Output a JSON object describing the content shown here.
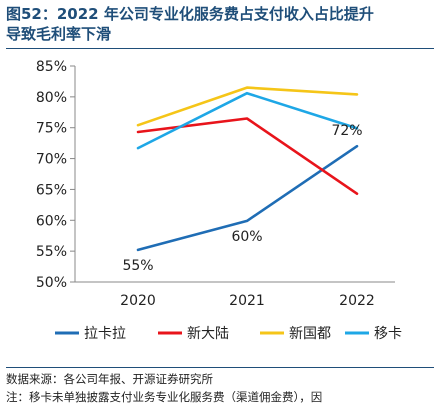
{
  "header": {
    "title_line1": "图52：2022 年公司专业化服务费占支付收入占比提升",
    "title_line2": "导致毛利率下滑"
  },
  "chart_data": {
    "type": "line",
    "x": [
      "2020",
      "2021",
      "2022"
    ],
    "ylim": [
      50,
      85
    ],
    "yticks": [
      50,
      55,
      60,
      65,
      70,
      75,
      80,
      85
    ],
    "ytick_labels": [
      "50%",
      "55%",
      "60%",
      "65%",
      "70%",
      "75%",
      "80%",
      "85%"
    ],
    "grid": false,
    "legend_position": "bottom",
    "series": [
      {
        "name": "拉卡拉",
        "color": "#1f6db5",
        "values": [
          55.2,
          59.9,
          72.0
        ],
        "data_labels": [
          "55%",
          "60%",
          "72%"
        ]
      },
      {
        "name": "新大陆",
        "color": "#e8141b",
        "values": [
          74.3,
          76.5,
          64.3
        ]
      },
      {
        "name": "新国都",
        "color": "#f5c518",
        "values": [
          75.4,
          81.5,
          80.4
        ]
      },
      {
        "name": "移卡",
        "color": "#1ea7e6",
        "values": [
          71.7,
          80.6,
          74.9
        ]
      }
    ]
  },
  "footer": {
    "source": "数据来源：各公司年报、开源证券研究所",
    "note": "注：移卡未单独披露支付业务专业化服务费（渠道佣金费），因"
  }
}
